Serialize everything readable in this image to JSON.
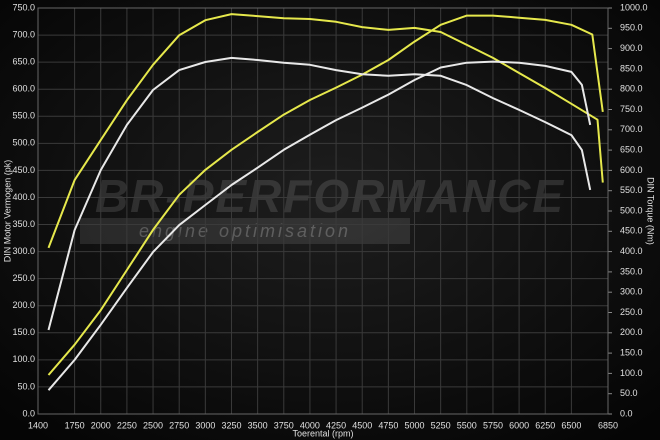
{
  "chart_data": {
    "type": "line",
    "y_label": "DIN Motor Vermogen (pk)",
    "y2_label": "DIN Torque (Nm)",
    "x_label": "Toerental (rpm)",
    "watermark": {
      "brand": "BR-PERFORMANCE",
      "tagline": "engine optimisation"
    },
    "xlim": [
      1400,
      6850
    ],
    "ylim": [
      0,
      750
    ],
    "y2lim": [
      0,
      1000
    ],
    "grid": true,
    "xticks": [
      1400,
      1750,
      2000,
      2250,
      2500,
      2750,
      3000,
      3250,
      3500,
      3750,
      4000,
      4250,
      4500,
      4750,
      5000,
      5250,
      5500,
      5750,
      6000,
      6250,
      6500,
      6850
    ],
    "yticks": [
      {
        "value": 0,
        "label": "0.0"
      },
      {
        "value": 50,
        "label": "50.0"
      },
      {
        "value": 100,
        "label": "100.0"
      },
      {
        "value": 150,
        "label": "150.0"
      },
      {
        "value": 200,
        "label": "200.0"
      },
      {
        "value": 250,
        "label": "250.0"
      },
      {
        "value": 300,
        "label": "300.0"
      },
      {
        "value": 350,
        "label": "350.0"
      },
      {
        "value": 400,
        "label": "400.0"
      },
      {
        "value": 450,
        "label": "450.0"
      },
      {
        "value": 500,
        "label": "500.0"
      },
      {
        "value": 550,
        "label": "550.0"
      },
      {
        "value": 600,
        "label": "600.0"
      },
      {
        "value": 650,
        "label": "650.0"
      },
      {
        "value": 700,
        "label": "700.0"
      },
      {
        "value": 750,
        "label": "750.0"
      }
    ],
    "y2ticks": [
      {
        "value": 0,
        "label": "0.0"
      },
      {
        "value": 50,
        "label": "50.0"
      },
      {
        "value": 100,
        "label": "100.0"
      },
      {
        "value": 150,
        "label": "150.0"
      },
      {
        "value": 200,
        "label": "200.0"
      },
      {
        "value": 250,
        "label": "250.0"
      },
      {
        "value": 300,
        "label": "300.0"
      },
      {
        "value": 350,
        "label": "350.0"
      },
      {
        "value": 400,
        "label": "400.0"
      },
      {
        "value": 450,
        "label": "450.0"
      },
      {
        "value": 500,
        "label": "500.0"
      },
      {
        "value": 550,
        "label": "550.0"
      },
      {
        "value": 600,
        "label": "600.0"
      },
      {
        "value": 650,
        "label": "650.0"
      },
      {
        "value": 700,
        "label": "700.0"
      },
      {
        "value": 750,
        "label": "750.0"
      },
      {
        "value": 800,
        "label": "800.0"
      },
      {
        "value": 850,
        "label": "850.0"
      },
      {
        "value": 900,
        "label": "900.0"
      },
      {
        "value": 950,
        "label": "950.0"
      },
      {
        "value": 1000,
        "label": "1000.0"
      }
    ],
    "series": [
      {
        "color": "#e6e84c",
        "axis": "y2",
        "x": [
          1500,
          1750,
          2000,
          2250,
          2500,
          2750,
          3000,
          3250,
          3500,
          3750,
          4000,
          4250,
          4500,
          4750,
          5000,
          5250,
          5500,
          5750,
          6000,
          6250,
          6500,
          6750,
          6800
        ],
        "values": [
          409,
          576,
          675,
          773,
          860,
          933,
          970,
          985,
          980,
          975,
          973,
          966,
          953,
          946,
          951,
          941,
          909,
          877,
          840,
          803,
          764,
          725,
          570
        ]
      },
      {
        "color": "#e6e84c",
        "x": [
          1500,
          1750,
          2000,
          2250,
          2500,
          2750,
          3000,
          3250,
          3500,
          3750,
          4000,
          4250,
          4500,
          4750,
          5000,
          5250,
          5500,
          5750,
          6000,
          6250,
          6500,
          6700,
          6800
        ],
        "values": [
          72,
          128,
          192,
          266,
          340,
          405,
          451,
          488,
          521,
          553,
          580,
          603,
          627,
          654,
          688,
          719,
          736,
          736,
          732,
          728,
          719,
          701,
          558
        ]
      },
      {
        "color": "#e8e8e8",
        "axis": "y2",
        "x": [
          1500,
          1750,
          2000,
          2250,
          2500,
          2750,
          3000,
          3250,
          3500,
          3750,
          4000,
          4250,
          4500,
          4750,
          5000,
          5250,
          5500,
          5750,
          6000,
          6250,
          6500,
          6600,
          6680
        ],
        "values": [
          207,
          453,
          601,
          712,
          798,
          847,
          867,
          877,
          872,
          865,
          860,
          847,
          837,
          833,
          837,
          833,
          810,
          778,
          749,
          719,
          687,
          650,
          552
        ]
      },
      {
        "color": "#e8e8e8",
        "x": [
          1500,
          1750,
          2000,
          2250,
          2500,
          2750,
          3000,
          3250,
          3500,
          3750,
          4000,
          4250,
          4500,
          4750,
          5000,
          5250,
          5500,
          5750,
          6000,
          6250,
          6500,
          6600,
          6680
        ],
        "values": [
          44,
          100,
          165,
          233,
          299,
          349,
          386,
          423,
          455,
          488,
          516,
          543,
          566,
          590,
          617,
          640,
          649,
          651,
          649,
          643,
          632,
          608,
          534
        ]
      }
    ]
  }
}
